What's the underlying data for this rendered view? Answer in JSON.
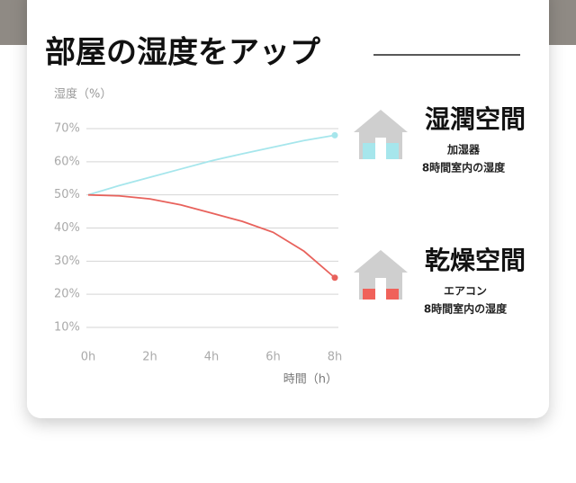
{
  "chart_data": {
    "type": "line",
    "title": "部屋の湿度をアップ",
    "y_label": "湿度（%）",
    "x_label": "時間（h）",
    "x": [
      0,
      1,
      2,
      3,
      4,
      5,
      6,
      7,
      8
    ],
    "series": [
      {
        "name": "湿潤空間",
        "color": "#a6e6ec",
        "notes": [
          "加湿器",
          "8時間室内の湿度"
        ],
        "fill": "#a6e6ec",
        "values": [
          50,
          52.8,
          55.3,
          57.8,
          60.3,
          62.4,
          64.4,
          66.4,
          68
        ]
      },
      {
        "name": "乾燥空間",
        "color": "#e8625c",
        "notes": [
          "エアコン",
          "8時間室内の湿度"
        ],
        "fill": "#f0625a",
        "values": [
          50,
          49.7,
          48.8,
          47,
          44.5,
          42,
          38.7,
          33,
          25
        ]
      }
    ],
    "xlim": [
      0,
      8
    ],
    "xticks": [
      {
        "value": 0,
        "label": "0h"
      },
      {
        "value": 2,
        "label": "2h"
      },
      {
        "value": 4,
        "label": "4h"
      },
      {
        "value": 6,
        "label": "6h"
      },
      {
        "value": 8,
        "label": "8h"
      }
    ],
    "ylim": [
      10,
      70
    ],
    "yticks": [
      {
        "value": 10,
        "label": "10%"
      },
      {
        "value": 20,
        "label": "20%"
      },
      {
        "value": 30,
        "label": "30%"
      },
      {
        "value": 40,
        "label": "40%"
      },
      {
        "value": 50,
        "label": "50%"
      },
      {
        "value": 60,
        "label": "60%"
      },
      {
        "value": 70,
        "label": "70%"
      }
    ],
    "grid": true
  }
}
